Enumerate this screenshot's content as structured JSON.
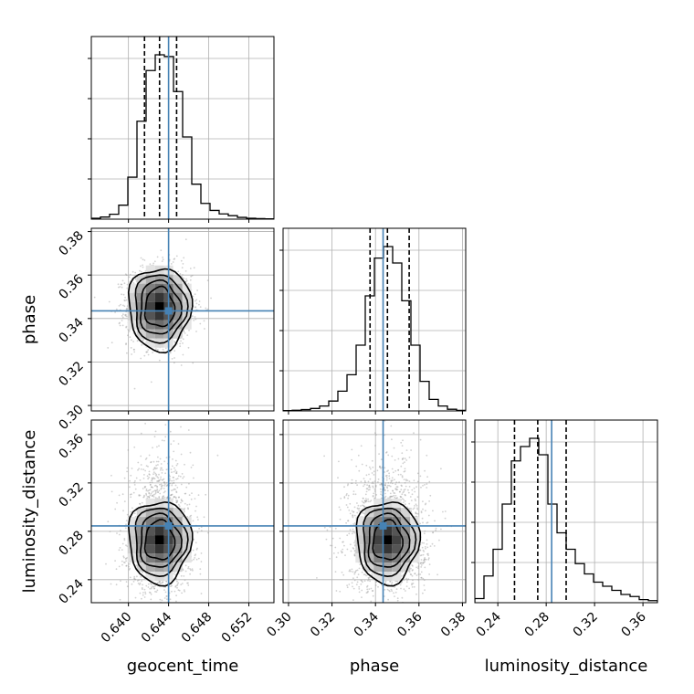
{
  "chart_data": {
    "type": "corner",
    "parameters": [
      "geocent_time",
      "phase",
      "luminosity_distance"
    ],
    "truths": {
      "geocent_time": 0.644,
      "phase": 0.3435,
      "luminosity_distance": 0.2845
    },
    "ticks": {
      "geocent_time": {
        "values": [
          0.64,
          0.644,
          0.648,
          0.652
        ],
        "labels": [
          "0.640",
          "0.644",
          "0.648",
          "0.652"
        ]
      },
      "phase": {
        "values": [
          0.3,
          0.32,
          0.34,
          0.36,
          0.38
        ],
        "labels": [
          "0.30",
          "0.32",
          "0.34",
          "0.36",
          "0.38"
        ]
      },
      "luminosity_distance": {
        "values": [
          0.24,
          0.28,
          0.32,
          0.36
        ],
        "labels": [
          "0.24",
          "0.28",
          "0.32",
          "0.36"
        ]
      }
    },
    "ranges": {
      "geocent_time": [
        0.6363,
        0.6545
      ],
      "phase": [
        0.2975,
        0.3815
      ],
      "luminosity_distance": [
        0.221,
        0.372
      ]
    },
    "quantiles": {
      "geocent_time": [
        0.6416,
        0.6431,
        0.6448
      ],
      "phase": [
        0.3375,
        0.3455,
        0.3555
      ],
      "luminosity_distance": [
        0.2538,
        0.273,
        0.2965
      ]
    },
    "histograms": {
      "geocent_time": {
        "bin_start": 0.6363,
        "bin_width": 0.00091,
        "counts": [
          0.5,
          1.2,
          2.8,
          8,
          24,
          56,
          85,
          94,
          93,
          73,
          47,
          20,
          9,
          5,
          3,
          2,
          1,
          0.5,
          0.3,
          0.2
        ]
      },
      "phase": {
        "bin_start": 0.2975,
        "bin_width": 0.0042,
        "counts": [
          0.2,
          0.4,
          0.8,
          1.5,
          3,
          6,
          12,
          22,
          40,
          70,
          93,
          100,
          90,
          67,
          40,
          18,
          7,
          3,
          1,
          0.3
        ]
      },
      "luminosity_distance": {
        "bin_start": 0.221,
        "bin_width": 0.00755,
        "counts": [
          2,
          13,
          26,
          48,
          69,
          76,
          80,
          72,
          48,
          34,
          26,
          19,
          14,
          10,
          8,
          6,
          4,
          3,
          1.5,
          1
        ]
      }
    },
    "contour_levels": [
      0.5,
      1.0,
      1.5,
      2.0
    ],
    "scatter_points": 1800,
    "grid": true,
    "legend": "none"
  }
}
